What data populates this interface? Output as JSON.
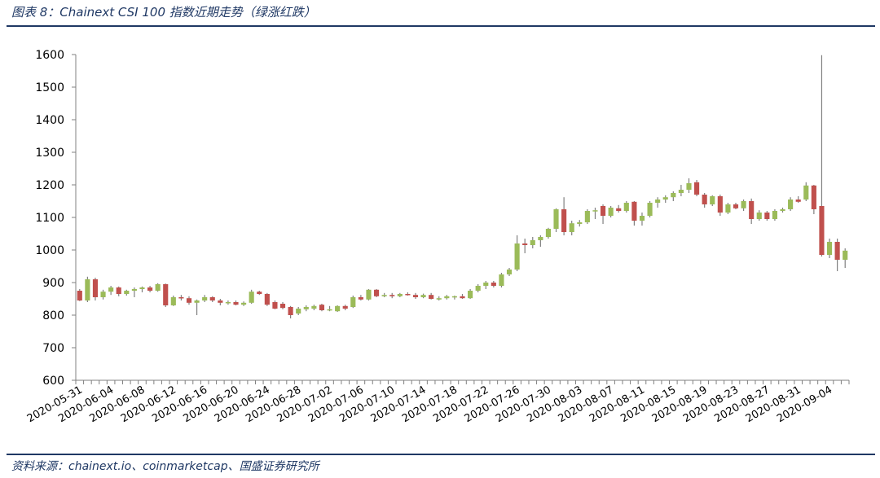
{
  "caption": "图表 8：Chainext CSI 100 指数近期走势（绿涨红跌）",
  "source": "资料来源：chainext.io、coinmarketcap、国盛证券研究所",
  "colors": {
    "up": "#9bbb59",
    "down": "#c0504d",
    "wick": "#808080",
    "axis": "#808080",
    "rule": "#1f3864"
  },
  "chart_data": {
    "type": "candlestick",
    "title": "Chainext CSI 100 指数近期走势（绿涨红跌）",
    "ylim": [
      600,
      1600
    ],
    "yticks": [
      600,
      700,
      800,
      900,
      1000,
      1100,
      1200,
      1300,
      1400,
      1500,
      1600
    ],
    "grid": false,
    "legend": "none",
    "xtick_labels": [
      "2020-05-31",
      "2020-06-04",
      "2020-06-08",
      "2020-06-12",
      "2020-06-16",
      "2020-06-20",
      "2020-06-24",
      "2020-06-28",
      "2020-07-02",
      "2020-07-06",
      "2020-07-10",
      "2020-07-14",
      "2020-07-18",
      "2020-07-22",
      "2020-07-26",
      "2020-07-30",
      "2020-08-03",
      "2020-08-07",
      "2020-08-11",
      "2020-08-15",
      "2020-08-19",
      "2020-08-23",
      "2020-08-27",
      "2020-08-31",
      "2020-09-04"
    ],
    "candles": [
      {
        "date": "2020-05-31",
        "open": 875,
        "high": 880,
        "low": 843,
        "close": 845
      },
      {
        "date": "2020-06-01",
        "open": 845,
        "high": 918,
        "low": 840,
        "close": 910
      },
      {
        "date": "2020-06-02",
        "open": 910,
        "high": 915,
        "low": 845,
        "close": 855
      },
      {
        "date": "2020-06-03",
        "open": 855,
        "high": 878,
        "low": 848,
        "close": 872
      },
      {
        "date": "2020-06-04",
        "open": 872,
        "high": 890,
        "low": 862,
        "close": 885
      },
      {
        "date": "2020-06-05",
        "open": 885,
        "high": 888,
        "low": 858,
        "close": 865
      },
      {
        "date": "2020-06-06",
        "open": 865,
        "high": 878,
        "low": 860,
        "close": 875
      },
      {
        "date": "2020-06-07",
        "open": 875,
        "high": 885,
        "low": 855,
        "close": 880
      },
      {
        "date": "2020-06-08",
        "open": 880,
        "high": 888,
        "low": 870,
        "close": 885
      },
      {
        "date": "2020-06-09",
        "open": 885,
        "high": 890,
        "low": 870,
        "close": 875
      },
      {
        "date": "2020-06-10",
        "open": 875,
        "high": 898,
        "low": 872,
        "close": 895
      },
      {
        "date": "2020-06-11",
        "open": 895,
        "high": 897,
        "low": 825,
        "close": 830
      },
      {
        "date": "2020-06-12",
        "open": 830,
        "high": 860,
        "low": 828,
        "close": 855
      },
      {
        "date": "2020-06-13",
        "open": 855,
        "high": 862,
        "low": 845,
        "close": 852
      },
      {
        "date": "2020-06-14",
        "open": 852,
        "high": 858,
        "low": 832,
        "close": 838
      },
      {
        "date": "2020-06-15",
        "open": 838,
        "high": 848,
        "low": 800,
        "close": 845
      },
      {
        "date": "2020-06-16",
        "open": 845,
        "high": 862,
        "low": 840,
        "close": 855
      },
      {
        "date": "2020-06-17",
        "open": 855,
        "high": 858,
        "low": 840,
        "close": 845
      },
      {
        "date": "2020-06-18",
        "open": 845,
        "high": 850,
        "low": 830,
        "close": 838
      },
      {
        "date": "2020-06-19",
        "open": 838,
        "high": 845,
        "low": 832,
        "close": 840
      },
      {
        "date": "2020-06-20",
        "open": 840,
        "high": 845,
        "low": 830,
        "close": 832
      },
      {
        "date": "2020-06-21",
        "open": 832,
        "high": 842,
        "low": 828,
        "close": 838
      },
      {
        "date": "2020-06-22",
        "open": 838,
        "high": 878,
        "low": 835,
        "close": 872
      },
      {
        "date": "2020-06-23",
        "open": 872,
        "high": 875,
        "low": 862,
        "close": 865
      },
      {
        "date": "2020-06-24",
        "open": 865,
        "high": 868,
        "low": 828,
        "close": 832
      },
      {
        "date": "2020-06-25",
        "open": 840,
        "high": 845,
        "low": 818,
        "close": 820
      },
      {
        "date": "2020-06-26",
        "open": 835,
        "high": 840,
        "low": 818,
        "close": 822
      },
      {
        "date": "2020-06-27",
        "open": 825,
        "high": 828,
        "low": 790,
        "close": 800
      },
      {
        "date": "2020-06-28",
        "open": 805,
        "high": 825,
        "low": 800,
        "close": 820
      },
      {
        "date": "2020-06-29",
        "open": 818,
        "high": 830,
        "low": 812,
        "close": 825
      },
      {
        "date": "2020-06-30",
        "open": 820,
        "high": 832,
        "low": 815,
        "close": 828
      },
      {
        "date": "2020-07-01",
        "open": 832,
        "high": 835,
        "low": 812,
        "close": 815
      },
      {
        "date": "2020-07-02",
        "open": 815,
        "high": 828,
        "low": 812,
        "close": 818
      },
      {
        "date": "2020-07-03",
        "open": 812,
        "high": 830,
        "low": 810,
        "close": 828
      },
      {
        "date": "2020-07-04",
        "open": 828,
        "high": 832,
        "low": 815,
        "close": 820
      },
      {
        "date": "2020-07-05",
        "open": 825,
        "high": 860,
        "low": 822,
        "close": 855
      },
      {
        "date": "2020-07-06",
        "open": 855,
        "high": 862,
        "low": 845,
        "close": 848
      },
      {
        "date": "2020-07-07",
        "open": 848,
        "high": 880,
        "low": 845,
        "close": 878
      },
      {
        "date": "2020-07-08",
        "open": 878,
        "high": 880,
        "low": 855,
        "close": 858
      },
      {
        "date": "2020-07-09",
        "open": 858,
        "high": 868,
        "low": 855,
        "close": 862
      },
      {
        "date": "2020-07-10",
        "open": 862,
        "high": 868,
        "low": 852,
        "close": 858
      },
      {
        "date": "2020-07-11",
        "open": 858,
        "high": 868,
        "low": 855,
        "close": 865
      },
      {
        "date": "2020-07-12",
        "open": 865,
        "high": 870,
        "low": 860,
        "close": 862
      },
      {
        "date": "2020-07-13",
        "open": 862,
        "high": 868,
        "low": 850,
        "close": 855
      },
      {
        "date": "2020-07-14",
        "open": 855,
        "high": 866,
        "low": 852,
        "close": 862
      },
      {
        "date": "2020-07-15",
        "open": 862,
        "high": 868,
        "low": 848,
        "close": 850
      },
      {
        "date": "2020-07-16",
        "open": 848,
        "high": 858,
        "low": 845,
        "close": 852
      },
      {
        "date": "2020-07-17",
        "open": 852,
        "high": 862,
        "low": 848,
        "close": 858
      },
      {
        "date": "2020-07-18",
        "open": 855,
        "high": 860,
        "low": 848,
        "close": 858
      },
      {
        "date": "2020-07-19",
        "open": 858,
        "high": 865,
        "low": 850,
        "close": 852
      },
      {
        "date": "2020-07-20",
        "open": 852,
        "high": 880,
        "low": 850,
        "close": 875
      },
      {
        "date": "2020-07-21",
        "open": 875,
        "high": 895,
        "low": 870,
        "close": 890
      },
      {
        "date": "2020-07-22",
        "open": 890,
        "high": 905,
        "low": 880,
        "close": 900
      },
      {
        "date": "2020-07-23",
        "open": 900,
        "high": 905,
        "low": 885,
        "close": 890
      },
      {
        "date": "2020-07-24",
        "open": 890,
        "high": 930,
        "low": 885,
        "close": 925
      },
      {
        "date": "2020-07-25",
        "open": 925,
        "high": 945,
        "low": 920,
        "close": 940
      },
      {
        "date": "2020-07-26",
        "open": 940,
        "high": 1045,
        "low": 935,
        "close": 1020
      },
      {
        "date": "2020-07-27",
        "open": 1020,
        "high": 1035,
        "low": 990,
        "close": 1015
      },
      {
        "date": "2020-07-28",
        "open": 1015,
        "high": 1040,
        "low": 1005,
        "close": 1030
      },
      {
        "date": "2020-07-29",
        "open": 1030,
        "high": 1045,
        "low": 1010,
        "close": 1040
      },
      {
        "date": "2020-07-30",
        "open": 1040,
        "high": 1068,
        "low": 1035,
        "close": 1065
      },
      {
        "date": "2020-07-31",
        "open": 1065,
        "high": 1128,
        "low": 1055,
        "close": 1125
      },
      {
        "date": "2020-08-01",
        "open": 1125,
        "high": 1162,
        "low": 1045,
        "close": 1055
      },
      {
        "date": "2020-08-02",
        "open": 1055,
        "high": 1090,
        "low": 1045,
        "close": 1082
      },
      {
        "date": "2020-08-03",
        "open": 1080,
        "high": 1092,
        "low": 1072,
        "close": 1085
      },
      {
        "date": "2020-08-04",
        "open": 1085,
        "high": 1125,
        "low": 1080,
        "close": 1120
      },
      {
        "date": "2020-08-05",
        "open": 1120,
        "high": 1130,
        "low": 1095,
        "close": 1122
      },
      {
        "date": "2020-08-06",
        "open": 1135,
        "high": 1140,
        "low": 1080,
        "close": 1105
      },
      {
        "date": "2020-08-07",
        "open": 1105,
        "high": 1135,
        "low": 1100,
        "close": 1130
      },
      {
        "date": "2020-08-08",
        "open": 1128,
        "high": 1138,
        "low": 1115,
        "close": 1120
      },
      {
        "date": "2020-08-09",
        "open": 1120,
        "high": 1150,
        "low": 1115,
        "close": 1145
      },
      {
        "date": "2020-08-10",
        "open": 1148,
        "high": 1150,
        "low": 1075,
        "close": 1090
      },
      {
        "date": "2020-08-11",
        "open": 1090,
        "high": 1115,
        "low": 1075,
        "close": 1105
      },
      {
        "date": "2020-08-12",
        "open": 1105,
        "high": 1150,
        "low": 1100,
        "close": 1145
      },
      {
        "date": "2020-08-13",
        "open": 1145,
        "high": 1162,
        "low": 1130,
        "close": 1155
      },
      {
        "date": "2020-08-14",
        "open": 1155,
        "high": 1168,
        "low": 1145,
        "close": 1162
      },
      {
        "date": "2020-08-15",
        "open": 1162,
        "high": 1180,
        "low": 1150,
        "close": 1175
      },
      {
        "date": "2020-08-16",
        "open": 1175,
        "high": 1200,
        "low": 1165,
        "close": 1185
      },
      {
        "date": "2020-08-17",
        "open": 1185,
        "high": 1220,
        "low": 1175,
        "close": 1205
      },
      {
        "date": "2020-08-18",
        "open": 1208,
        "high": 1215,
        "low": 1165,
        "close": 1170
      },
      {
        "date": "2020-08-19",
        "open": 1170,
        "high": 1175,
        "low": 1130,
        "close": 1140
      },
      {
        "date": "2020-08-20",
        "open": 1140,
        "high": 1168,
        "low": 1135,
        "close": 1165
      },
      {
        "date": "2020-08-21",
        "open": 1165,
        "high": 1170,
        "low": 1105,
        "close": 1115
      },
      {
        "date": "2020-08-22",
        "open": 1115,
        "high": 1145,
        "low": 1110,
        "close": 1140
      },
      {
        "date": "2020-08-23",
        "open": 1140,
        "high": 1145,
        "low": 1125,
        "close": 1128
      },
      {
        "date": "2020-08-24",
        "open": 1128,
        "high": 1155,
        "low": 1120,
        "close": 1150
      },
      {
        "date": "2020-08-25",
        "open": 1150,
        "high": 1158,
        "low": 1080,
        "close": 1095
      },
      {
        "date": "2020-08-26",
        "open": 1095,
        "high": 1122,
        "low": 1090,
        "close": 1115
      },
      {
        "date": "2020-08-27",
        "open": 1115,
        "high": 1120,
        "low": 1090,
        "close": 1095
      },
      {
        "date": "2020-08-28",
        "open": 1095,
        "high": 1125,
        "low": 1090,
        "close": 1120
      },
      {
        "date": "2020-08-29",
        "open": 1120,
        "high": 1130,
        "low": 1115,
        "close": 1125
      },
      {
        "date": "2020-08-30",
        "open": 1125,
        "high": 1162,
        "low": 1120,
        "close": 1155
      },
      {
        "date": "2020-08-31",
        "open": 1155,
        "high": 1165,
        "low": 1145,
        "close": 1148
      },
      {
        "date": "2020-09-01",
        "open": 1155,
        "high": 1208,
        "low": 1150,
        "close": 1198
      },
      {
        "date": "2020-09-02",
        "open": 1198,
        "high": 1200,
        "low": 1110,
        "close": 1125
      },
      {
        "date": "2020-09-03",
        "open": 1135,
        "high": 1598,
        "low": 980,
        "close": 985
      },
      {
        "date": "2020-09-04",
        "open": 985,
        "high": 1035,
        "low": 975,
        "close": 1025
      },
      {
        "date": "2020-09-05",
        "open": 1025,
        "high": 1035,
        "low": 935,
        "close": 970
      },
      {
        "date": "2020-09-06",
        "open": 970,
        "high": 1005,
        "low": 945,
        "close": 998
      }
    ]
  }
}
